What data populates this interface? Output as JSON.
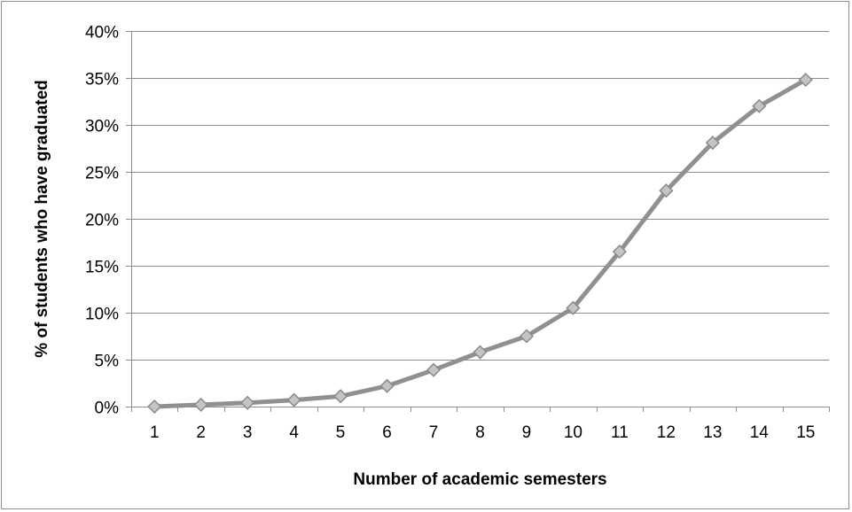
{
  "chart_data": {
    "type": "line",
    "title": "",
    "xlabel": "Number of academic semesters",
    "ylabel": "% of students who have graduated",
    "categories": [
      "1",
      "2",
      "3",
      "4",
      "5",
      "6",
      "7",
      "8",
      "9",
      "10",
      "11",
      "12",
      "13",
      "14",
      "15"
    ],
    "y_ticks": [
      "0%",
      "5%",
      "10%",
      "15%",
      "20%",
      "25%",
      "30%",
      "35%",
      "40%"
    ],
    "ylim": [
      0,
      40
    ],
    "y_unit": "%",
    "grid": true,
    "legend": "none",
    "series": [
      {
        "values": [
          0.0,
          0.2,
          0.4,
          0.7,
          1.1,
          2.2,
          3.9,
          5.8,
          7.5,
          10.5,
          16.5,
          23.0,
          28.1,
          32.0,
          34.8
        ]
      }
    ],
    "colors": {
      "line": "#909090",
      "marker_fill": "#c4c4c4",
      "marker_stroke": "#8a8a8a",
      "grid": "#8c8c8c",
      "axis": "#8c8c8c"
    }
  }
}
